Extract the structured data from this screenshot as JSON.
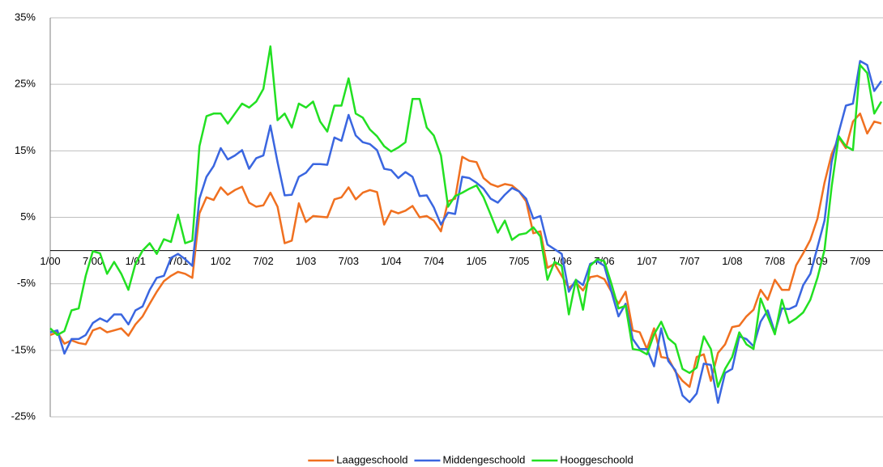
{
  "chart_data": {
    "type": "line",
    "categories": [
      "1/00",
      null,
      null,
      null,
      null,
      null,
      "7/00",
      null,
      null,
      null,
      null,
      null,
      "1/01",
      null,
      null,
      null,
      null,
      null,
      "7/01",
      null,
      null,
      null,
      null,
      null,
      "1/02",
      null,
      null,
      null,
      null,
      null,
      "7/02",
      null,
      null,
      null,
      null,
      null,
      "1/03",
      null,
      null,
      null,
      null,
      null,
      "7/03",
      null,
      null,
      null,
      null,
      null,
      "1/04",
      null,
      null,
      null,
      null,
      null,
      "7/04",
      null,
      null,
      null,
      null,
      null,
      "1/05",
      null,
      null,
      null,
      null,
      null,
      "7/05",
      null,
      null,
      null,
      null,
      null,
      "1/06",
      null,
      null,
      null,
      null,
      null,
      "7/06",
      null,
      null,
      null,
      null,
      null,
      "1/07",
      null,
      null,
      null,
      null,
      null,
      "7/07",
      null,
      null,
      null,
      null,
      null,
      "1/08",
      null,
      null,
      null,
      null,
      null,
      "7/08",
      null,
      null,
      null,
      null,
      null,
      "1/09",
      null,
      null,
      null,
      null,
      null,
      "7/09",
      null,
      null,
      null
    ],
    "series": [
      {
        "name": "Laaggeschoold",
        "color": "#f07020",
        "values": [
          -12.7,
          -12.3,
          -14,
          -13.5,
          -13.9,
          -14.1,
          -12,
          -11.6,
          -12.3,
          -12,
          -11.7,
          -12.8,
          -11.1,
          -9.9,
          -8,
          -6.2,
          -4.6,
          -3.8,
          -3.2,
          -3.5,
          -4.1,
          5.6,
          8,
          7.6,
          9.5,
          8.4,
          9.1,
          9.6,
          7.2,
          6.6,
          6.8,
          8.7,
          6.6,
          1.1,
          1.5,
          7.1,
          4.3,
          5.2,
          5.1,
          5,
          7.7,
          8,
          9.5,
          7.7,
          8.7,
          9.1,
          8.8,
          3.9,
          6,
          5.6,
          6,
          6.7,
          5,
          5.2,
          4.5,
          2.9,
          7.4,
          7.8,
          14.1,
          13.5,
          13.3,
          10.9,
          10,
          9.6,
          10,
          9.8,
          8.9,
          7.4,
          2.6,
          2.9,
          -2.6,
          -2,
          -3.8,
          -5.6,
          -4.8,
          -6,
          -4,
          -3.8,
          -4.3,
          -6.2,
          -8,
          -6.2,
          -12,
          -12.3,
          -14.8,
          -11.7,
          -16,
          -16.2,
          -18.2,
          -19.6,
          -20.5,
          -16,
          -15.6,
          -19.6,
          -15.4,
          -14.1,
          -11.5,
          -11.3,
          -9.9,
          -8.9,
          -5.9,
          -7.4,
          -4.4,
          -5.9,
          -5.9,
          -2.2,
          -0.4,
          1.6,
          4.8,
          10.2,
          14.5,
          17,
          15.4,
          19.4,
          20.6,
          17.6,
          19.4,
          19.1
        ]
      },
      {
        "name": "Middengeschoold",
        "color": "#3a66e0",
        "values": [
          -12.3,
          -12,
          -15.5,
          -13.3,
          -13.3,
          -12.7,
          -10.9,
          -10.2,
          -10.7,
          -9.6,
          -9.6,
          -11.1,
          -9,
          -8.4,
          -5.9,
          -4.1,
          -3.8,
          -1.1,
          -0.5,
          -1.3,
          -2.3,
          7.8,
          11.1,
          12.7,
          15.4,
          13.7,
          14.3,
          15.1,
          12.3,
          13.9,
          14.3,
          18.8,
          13.3,
          8.3,
          8.4,
          11.1,
          11.7,
          13,
          13,
          12.9,
          17,
          16.5,
          20.4,
          17.3,
          16.3,
          16,
          15.1,
          12.3,
          12.1,
          10.9,
          11.8,
          11.1,
          8.2,
          8.3,
          6.5,
          3.9,
          5.7,
          5.5,
          11.1,
          10.9,
          10.2,
          9.3,
          7.8,
          7.2,
          8.4,
          9.4,
          8.9,
          7.8,
          4.8,
          5.2,
          0.9,
          0.2,
          -0.5,
          -6.2,
          -4.4,
          -5.2,
          -2,
          -1.6,
          -2.3,
          -6.2,
          -9.9,
          -8,
          -13.3,
          -14.8,
          -14.8,
          -17.4,
          -11.7,
          -16.6,
          -18,
          -21.8,
          -22.8,
          -21.5,
          -17,
          -17.2,
          -22.9,
          -18.4,
          -17.8,
          -12.9,
          -13.3,
          -14.4,
          -10.7,
          -9,
          -12.3,
          -8.7,
          -8.8,
          -8.3,
          -5.2,
          -3.5,
          0.5,
          4.5,
          13.3,
          17.8,
          21.8,
          22.1,
          28.5,
          27.9,
          24,
          25.5
        ]
      },
      {
        "name": "Hooggeschoold",
        "color": "#22e022",
        "values": [
          -11.7,
          -12.7,
          -12.1,
          -9,
          -8.7,
          -3.8,
          -0.1,
          -0.4,
          -3.5,
          -1.7,
          -3.5,
          -5.9,
          -2,
          0,
          1.1,
          -0.5,
          1.7,
          1.3,
          5.4,
          1.1,
          1.5,
          15.7,
          20.2,
          20.6,
          20.6,
          19.1,
          20.6,
          22.1,
          21.5,
          22.4,
          24.3,
          30.7,
          19.6,
          20.6,
          18.5,
          22.1,
          21.5,
          22.4,
          19.4,
          17.9,
          21.8,
          21.8,
          25.9,
          20.6,
          20,
          18.2,
          17.2,
          15.7,
          14.9,
          15.5,
          16.3,
          22.8,
          22.8,
          18.5,
          17.3,
          14.3,
          6.6,
          8.2,
          8.7,
          9.3,
          9.8,
          8,
          5.4,
          2.7,
          4.5,
          1.6,
          2.4,
          2.6,
          3.5,
          2.1,
          -4.4,
          -1.7,
          -2.3,
          -9.6,
          -4.4,
          -8.9,
          -2.3,
          -1.3,
          -1.6,
          -5,
          -8.7,
          -8.3,
          -14.8,
          -15,
          -15.6,
          -12.6,
          -10.7,
          -13.2,
          -14.1,
          -17.8,
          -18.4,
          -17.6,
          -12.9,
          -14.8,
          -20.5,
          -17.8,
          -16,
          -12.3,
          -14.1,
          -14.8,
          -7.2,
          -9.9,
          -12.6,
          -7.4,
          -10.9,
          -10.2,
          -9.3,
          -7.4,
          -4.1,
          0.1,
          9.6,
          17.2,
          15.7,
          15.1,
          27.9,
          26.7,
          20.6,
          22.4
        ]
      }
    ],
    "ylim": [
      -25,
      35
    ],
    "yticks": [
      {
        "value": -25,
        "label": "-25%"
      },
      {
        "value": -15,
        "label": "-15%"
      },
      {
        "value": -5,
        "label": "-5%"
      },
      {
        "value": 5,
        "label": "5%"
      },
      {
        "value": 15,
        "label": "15%"
      },
      {
        "value": 25,
        "label": "25%"
      },
      {
        "value": 35,
        "label": "35%"
      }
    ],
    "grid": true,
    "legend": "bottom"
  }
}
